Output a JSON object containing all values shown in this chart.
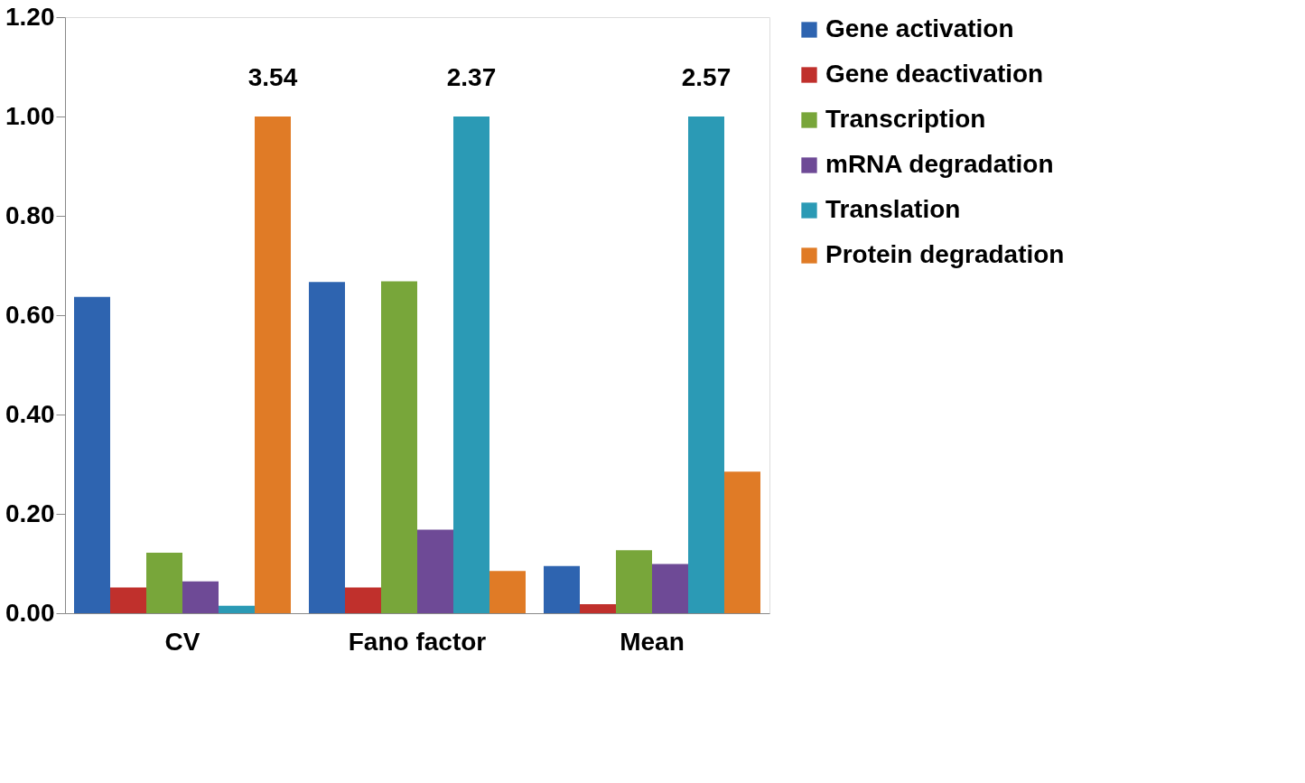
{
  "chart_data": {
    "type": "bar",
    "categories": [
      "CV",
      "Fano factor",
      "Mean"
    ],
    "series": [
      {
        "name": "Gene activation",
        "color": "#2e64b0",
        "values": [
          0.637,
          0.667,
          0.095
        ]
      },
      {
        "name": "Gene deactivation",
        "color": "#c0302c",
        "values": [
          0.052,
          0.052,
          0.018
        ]
      },
      {
        "name": "Transcription",
        "color": "#78a63a",
        "values": [
          0.122,
          0.668,
          0.127
        ]
      },
      {
        "name": "mRNA degradation",
        "color": "#6e4a96",
        "values": [
          0.064,
          0.168,
          0.099
        ]
      },
      {
        "name": "Translation",
        "color": "#2b9ab5",
        "values": [
          0.015,
          1.0,
          1.0
        ]
      },
      {
        "name": "Protein degradation",
        "color": "#e07b26",
        "values": [
          1.0,
          0.085,
          0.285
        ]
      }
    ],
    "annotations": [
      "3.54",
      "2.37",
      "2.57"
    ],
    "ylim": [
      0,
      1.2
    ],
    "yticks": [
      {
        "value": 0,
        "label": "0.00"
      },
      {
        "value": 0.2,
        "label": "0.20"
      },
      {
        "value": 0.4,
        "label": "0.40"
      },
      {
        "value": 0.6,
        "label": "0.60"
      },
      {
        "value": 0.8,
        "label": "0.80"
      },
      {
        "value": 1.0,
        "label": "1.00"
      },
      {
        "value": 1.2,
        "label": "1.20"
      }
    ],
    "grid": false,
    "legend": "right"
  }
}
